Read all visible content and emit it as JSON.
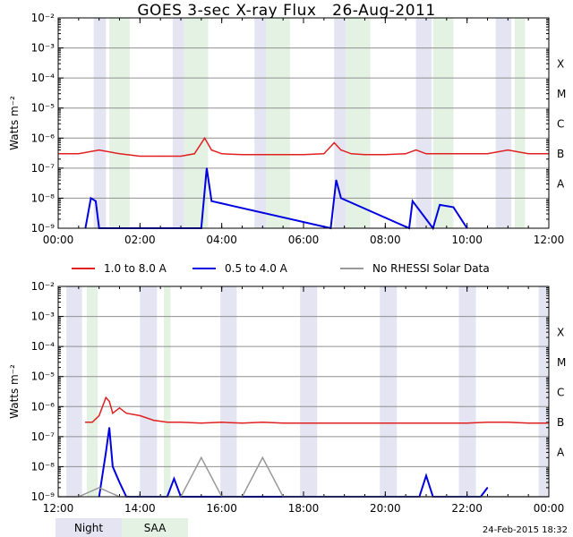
{
  "title": "GOES 3-sec X-ray Flux   26-Aug-2011",
  "ylabel": "Watts m⁻²",
  "legend": [
    {
      "label": "1.0 to 8.0 A",
      "color": "#e02020"
    },
    {
      "label": "0.5 to 4.0 A",
      "color": "#0000e0"
    },
    {
      "label": "No RHESSI Solar Data",
      "color": "#999999"
    }
  ],
  "key": [
    {
      "label": "Night",
      "color": "#e4e4f2"
    },
    {
      "label": "SAA",
      "color": "#e4f2e4"
    }
  ],
  "timestamp": "24-Feb-2015 18:32",
  "chart_data": [
    {
      "type": "line",
      "title": "GOES 3-sec X-ray Flux   26-Aug-2011",
      "ylabel": "Watts m⁻²",
      "yscale": "log",
      "ylim": [
        1e-09,
        0.01
      ],
      "xlim": [
        "00:00",
        "12:00"
      ],
      "x_ticks": [
        "00:00",
        "02:00",
        "04:00",
        "06:00",
        "08:00",
        "10:00",
        "12:00"
      ],
      "y_ticks": [
        "10⁻⁹",
        "10⁻⁸",
        "10⁻⁷",
        "10⁻⁶",
        "10⁻⁵",
        "10⁻⁴",
        "10⁻³",
        "10⁻²"
      ],
      "class_labels": [
        "A",
        "B",
        "C",
        "M",
        "X"
      ],
      "grid": true,
      "night_bands": [
        [
          "00:52",
          "01:10"
        ],
        [
          "02:48",
          "03:05"
        ],
        [
          "04:48",
          "05:05"
        ],
        [
          "06:45",
          "07:02"
        ],
        [
          "08:45",
          "09:08"
        ],
        [
          "10:42",
          "11:05"
        ]
      ],
      "saa_bands": [
        [
          "01:15",
          "01:45"
        ],
        [
          "03:05",
          "03:40"
        ],
        [
          "05:05",
          "05:40"
        ],
        [
          "07:02",
          "07:38"
        ],
        [
          "09:10",
          "09:40"
        ],
        [
          "11:10",
          "11:25"
        ]
      ],
      "series": [
        {
          "name": "1.0 to 8.0 A",
          "x": [
            "00:00",
            "00:30",
            "01:00",
            "01:30",
            "02:00",
            "02:30",
            "03:00",
            "03:20",
            "03:35",
            "03:45",
            "04:00",
            "04:30",
            "05:00",
            "05:25",
            "05:40",
            "06:00",
            "06:30",
            "06:45",
            "06:55",
            "07:10",
            "07:30",
            "08:00",
            "08:30",
            "08:45",
            "09:00",
            "09:30",
            "10:00",
            "10:30",
            "11:00",
            "11:30",
            "12:00"
          ],
          "y": [
            3e-07,
            3e-07,
            4e-07,
            3e-07,
            2.5e-07,
            2.5e-07,
            2.5e-07,
            3e-07,
            1e-06,
            4e-07,
            3e-07,
            2.8e-07,
            2.8e-07,
            2.8e-07,
            2.8e-07,
            2.8e-07,
            3e-07,
            7e-07,
            4e-07,
            3e-07,
            2.8e-07,
            2.8e-07,
            3e-07,
            4e-07,
            3e-07,
            3e-07,
            3e-07,
            3e-07,
            4e-07,
            3e-07,
            3e-07
          ]
        },
        {
          "name": "0.5 to 4.0 A",
          "x": [
            "00:40",
            "00:48",
            "00:55",
            "01:00",
            "03:30",
            "03:38",
            "03:45",
            "06:40",
            "06:48",
            "06:55",
            "08:35",
            "08:40",
            "09:10",
            "09:20",
            "09:40",
            "10:00"
          ],
          "y": [
            1e-09,
            1e-08,
            8e-09,
            1e-09,
            1e-09,
            1e-07,
            8e-09,
            1e-09,
            4e-08,
            1e-08,
            1e-09,
            8e-09,
            1e-09,
            6e-09,
            5e-09,
            1e-09
          ]
        }
      ]
    },
    {
      "type": "line",
      "ylabel": "Watts m⁻²",
      "yscale": "log",
      "ylim": [
        1e-09,
        0.01
      ],
      "xlim": [
        "12:00",
        "00:00"
      ],
      "x_ticks": [
        "12:00",
        "14:00",
        "16:00",
        "18:00",
        "20:00",
        "22:00",
        "00:00"
      ],
      "y_ticks": [
        "10⁻⁹",
        "10⁻⁸",
        "10⁻⁷",
        "10⁻⁶",
        "10⁻⁵",
        "10⁻⁴",
        "10⁻³",
        "10⁻²"
      ],
      "class_labels": [
        "A",
        "B",
        "C",
        "M",
        "X"
      ],
      "grid": true,
      "night_bands": [
        [
          "12:12",
          "12:35"
        ],
        [
          "14:00",
          "14:25"
        ],
        [
          "15:58",
          "16:22"
        ],
        [
          "17:55",
          "18:20"
        ],
        [
          "19:52",
          "20:17"
        ],
        [
          "21:48",
          "22:13"
        ],
        [
          "23:45",
          "23:58"
        ]
      ],
      "saa_bands": [
        [
          "12:42",
          "12:58"
        ],
        [
          "14:35",
          "14:45"
        ],
        [
          "23:58",
          "24:00"
        ]
      ],
      "series": [
        {
          "name": "1.0 to 8.0 A",
          "x": [
            "12:40",
            "12:50",
            "13:00",
            "13:10",
            "13:15",
            "13:20",
            "13:30",
            "13:40",
            "14:00",
            "14:20",
            "14:40",
            "15:00",
            "15:30",
            "16:00",
            "16:30",
            "17:00",
            "17:30",
            "18:00",
            "18:30",
            "19:00",
            "19:30",
            "20:00",
            "20:30",
            "21:00",
            "21:30",
            "22:00",
            "22:30",
            "23:00",
            "23:30",
            "24:00"
          ],
          "y": [
            3e-07,
            3e-07,
            5e-07,
            2e-06,
            1.5e-06,
            6e-07,
            9e-07,
            6e-07,
            5e-07,
            3.5e-07,
            3e-07,
            3e-07,
            2.8e-07,
            3e-07,
            2.8e-07,
            3e-07,
            2.8e-07,
            2.8e-07,
            2.8e-07,
            2.8e-07,
            2.8e-07,
            2.8e-07,
            2.8e-07,
            2.8e-07,
            2.8e-07,
            2.8e-07,
            3e-07,
            3e-07,
            2.8e-07,
            2.8e-07
          ]
        },
        {
          "name": "0.5 to 4.0 A",
          "x": [
            "13:00",
            "13:10",
            "13:15",
            "13:20",
            "13:30",
            "13:40",
            "14:40",
            "14:50",
            "15:00",
            "20:50",
            "21:00",
            "21:10",
            "22:20",
            "22:30"
          ],
          "y": [
            1e-09,
            3e-08,
            2e-07,
            1e-08,
            3e-09,
            1e-09,
            1e-09,
            4e-09,
            1e-09,
            1e-09,
            5e-09,
            1e-09,
            1e-09,
            2e-09
          ]
        },
        {
          "name": "No RHESSI Solar Data",
          "x": [
            "12:00",
            "12:30",
            "13:00",
            "13:30",
            "14:00",
            "14:30",
            "15:00",
            "15:30",
            "16:00",
            "16:30",
            "17:00",
            "17:30",
            "18:00",
            "18:30",
            "19:00",
            "19:30",
            "20:00",
            "20:30",
            "21:00",
            "21:30",
            "22:00",
            "22:30",
            "23:00",
            "23:30",
            "24:00"
          ],
          "y": [
            1e-09,
            1e-09,
            2e-09,
            1e-09,
            1e-09,
            1e-09,
            1e-09,
            2e-08,
            1e-09,
            1e-09,
            2e-08,
            1e-09,
            1e-09,
            1e-09,
            1e-09,
            1e-09,
            1e-09,
            1e-09,
            1e-09,
            1e-09,
            1e-09,
            1e-09,
            1e-09,
            1e-09,
            1e-09
          ]
        }
      ]
    }
  ]
}
